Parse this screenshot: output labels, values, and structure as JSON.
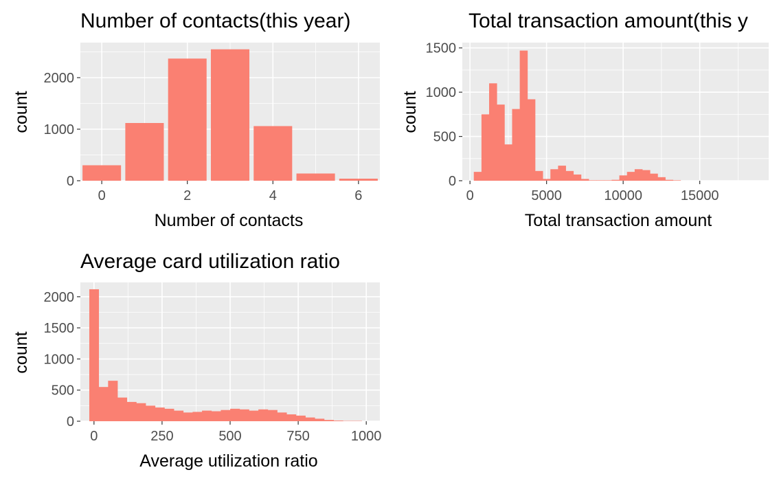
{
  "colors": {
    "bar": "#fa8072",
    "panel_background": "#ebebeb",
    "grid": "#ffffff",
    "tick_label": "#4d4d4d"
  },
  "chart_data": [
    {
      "id": "contacts",
      "type": "bar",
      "title": "Number of contacts(this year)",
      "xlabel": "Number of contacts",
      "ylabel": "count",
      "categories": [
        0,
        1,
        2,
        3,
        4,
        5,
        6
      ],
      "values": [
        300,
        1120,
        2370,
        2550,
        1060,
        140,
        40
      ],
      "xlim": [
        -0.5,
        6.5
      ],
      "ylim": [
        0,
        2680
      ],
      "x_ticks": [
        0,
        2,
        4,
        6
      ],
      "y_ticks": [
        0,
        1000,
        2000
      ],
      "grid": true
    },
    {
      "id": "transactions",
      "type": "bar",
      "title": "Total transaction amount(this y",
      "xlabel": "Total transaction amount",
      "ylabel": "count",
      "bin_width": 500,
      "bin_start": 500,
      "values": [
        100,
        750,
        1100,
        860,
        410,
        810,
        1470,
        920,
        110,
        20,
        130,
        170,
        110,
        70,
        20,
        5,
        5,
        5,
        10,
        60,
        100,
        130,
        120,
        80,
        40,
        10,
        5
      ],
      "xlim": [
        -500,
        19500
      ],
      "ylim": [
        0,
        1560
      ],
      "x_ticks": [
        0,
        5000,
        10000,
        15000
      ],
      "y_ticks": [
        0,
        500,
        1000,
        1500
      ],
      "grid": true
    },
    {
      "id": "utilization",
      "type": "bar",
      "title": "Average card utilization ratio",
      "xlabel": "Average utilization ratio",
      "ylabel": "count",
      "bin_width": 34.5,
      "bin_start": 0,
      "values": [
        2120,
        550,
        650,
        380,
        310,
        290,
        250,
        220,
        200,
        170,
        140,
        150,
        170,
        160,
        180,
        200,
        190,
        170,
        190,
        180,
        140,
        110,
        90,
        60,
        40,
        20,
        10,
        5,
        5
      ],
      "xlim": [
        -50,
        1050
      ],
      "ylim": [
        0,
        2230
      ],
      "x_ticks": [
        0,
        250,
        500,
        750,
        1000
      ],
      "y_ticks": [
        0,
        500,
        1000,
        1500,
        2000
      ],
      "grid": true
    }
  ]
}
